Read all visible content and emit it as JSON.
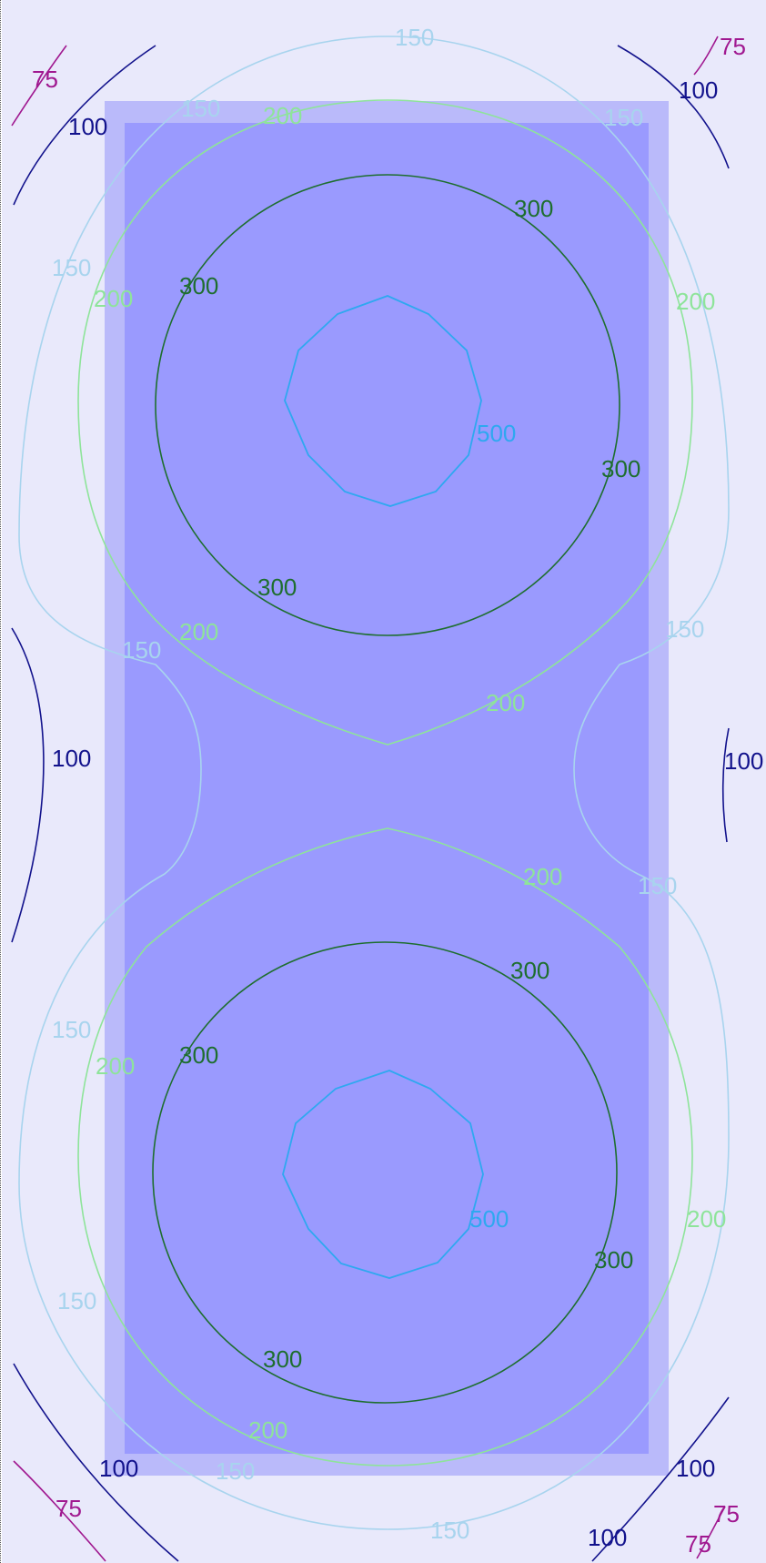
{
  "contour_levels": [
    {
      "value": "75",
      "color": "#a01890"
    },
    {
      "value": "100",
      "color": "#12128c"
    },
    {
      "value": "150",
      "color": "#a8d4ee"
    },
    {
      "value": "200",
      "color": "#8ee49a"
    },
    {
      "value": "300",
      "color": "#1e6e2e"
    },
    {
      "value": "500",
      "color": "#2ea8f0"
    }
  ],
  "colors": {
    "page_background": "#e9e9fb",
    "room_border": "#babafa",
    "room_fill": "#9a9afe"
  }
}
